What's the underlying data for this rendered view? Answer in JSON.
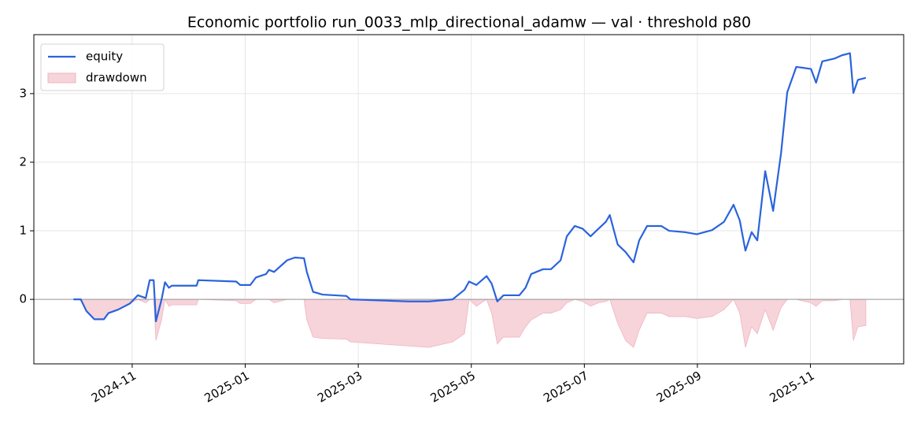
{
  "chart_data": {
    "type": "line",
    "title": "Economic portfolio run_0033_mlp_directional_adamw — val · threshold p80",
    "x": [
      -1.04,
      -0.91,
      -0.81,
      -0.67,
      -0.5,
      -0.42,
      -0.25,
      -0.04,
      0.1,
      0.24,
      0.31,
      0.38,
      0.42,
      0.52,
      0.58,
      0.65,
      0.7,
      1.14,
      1.17,
      1.84,
      1.91,
      2.09,
      2.19,
      2.37,
      2.42,
      2.51,
      2.74,
      2.88,
      3.04,
      3.09,
      3.2,
      3.37,
      3.79,
      3.86,
      4.9,
      5.25,
      5.67,
      5.88,
      5.96,
      6.09,
      6.27,
      6.36,
      6.46,
      6.57,
      6.85,
      6.96,
      7.06,
      7.27,
      7.41,
      7.58,
      7.69,
      7.83,
      7.97,
      8.11,
      8.25,
      8.38,
      8.45,
      8.59,
      8.73,
      8.87,
      8.97,
      9.11,
      9.36,
      9.5,
      9.78,
      9.99,
      10.26,
      10.47,
      10.64,
      10.75,
      10.85,
      10.96,
      11.06,
      11.2,
      11.34,
      11.48,
      11.59,
      11.75,
      12.01,
      12.1,
      12.21,
      12.42,
      12.56,
      12.7,
      12.76,
      12.84,
      12.98
    ],
    "series": [
      {
        "name": "equity",
        "kind": "line",
        "color": "#2a63dc",
        "values": [
          0,
          0,
          -0.17,
          -0.29,
          -0.29,
          -0.2,
          -0.15,
          -0.06,
          0.06,
          0.02,
          0.28,
          0.28,
          -0.32,
          0,
          0.25,
          0.17,
          0.2,
          0.2,
          0.28,
          0.26,
          0.21,
          0.21,
          0.32,
          0.37,
          0.43,
          0.4,
          0.57,
          0.61,
          0.6,
          0.4,
          0.11,
          0.07,
          0.05,
          0,
          -0.03,
          -0.03,
          0,
          0.14,
          0.26,
          0.21,
          0.34,
          0.23,
          -0.03,
          0.06,
          0.06,
          0.17,
          0.37,
          0.44,
          0.44,
          0.57,
          0.92,
          1.07,
          1.03,
          0.92,
          1.03,
          1.13,
          1.23,
          0.8,
          0.69,
          0.54,
          0.86,
          1.07,
          1.07,
          1.0,
          0.98,
          0.95,
          1.01,
          1.13,
          1.38,
          1.15,
          0.71,
          0.98,
          0.86,
          1.87,
          1.29,
          2.13,
          3.02,
          3.39,
          3.36,
          3.16,
          3.47,
          3.51,
          3.56,
          3.59,
          3.01,
          3.2,
          3.23
        ]
      },
      {
        "name": "drawdown",
        "kind": "area",
        "color": "#f7d3da",
        "values": [
          0,
          0,
          -0.17,
          -0.29,
          -0.29,
          -0.2,
          -0.15,
          -0.06,
          0,
          -0.05,
          0,
          0,
          -0.6,
          -0.3,
          0,
          -0.1,
          -0.08,
          -0.08,
          0,
          -0.02,
          -0.06,
          -0.06,
          0,
          0,
          0,
          -0.05,
          0,
          0,
          0,
          -0.3,
          -0.55,
          -0.57,
          -0.58,
          -0.62,
          -0.68,
          -0.7,
          -0.62,
          -0.5,
          0,
          -0.1,
          0,
          -0.2,
          -0.65,
          -0.55,
          -0.55,
          -0.4,
          -0.3,
          -0.2,
          -0.2,
          -0.15,
          -0.05,
          0,
          -0.03,
          -0.1,
          -0.05,
          -0.03,
          0,
          -0.35,
          -0.6,
          -0.7,
          -0.45,
          -0.2,
          -0.2,
          -0.25,
          -0.25,
          -0.28,
          -0.25,
          -0.15,
          0,
          -0.2,
          -0.7,
          -0.4,
          -0.5,
          -0.15,
          -0.45,
          -0.12,
          0,
          0,
          -0.05,
          -0.1,
          -0.02,
          -0.02,
          0,
          0,
          -0.6,
          -0.4,
          -0.38
        ]
      }
    ],
    "xlim": [
      -1.74,
      13.65
    ],
    "ylim": [
      -0.94,
      3.86
    ],
    "xticks": [
      {
        "value": 0,
        "label": "2024-11"
      },
      {
        "value": 2,
        "label": "2025-01"
      },
      {
        "value": 4,
        "label": "2025-03"
      },
      {
        "value": 6,
        "label": "2025-05"
      },
      {
        "value": 8,
        "label": "2025-07"
      },
      {
        "value": 10,
        "label": "2025-09"
      },
      {
        "value": 12,
        "label": "2025-11"
      }
    ],
    "yticks": [
      0,
      1,
      2,
      3
    ],
    "grid": true,
    "legend": "upper-left"
  }
}
